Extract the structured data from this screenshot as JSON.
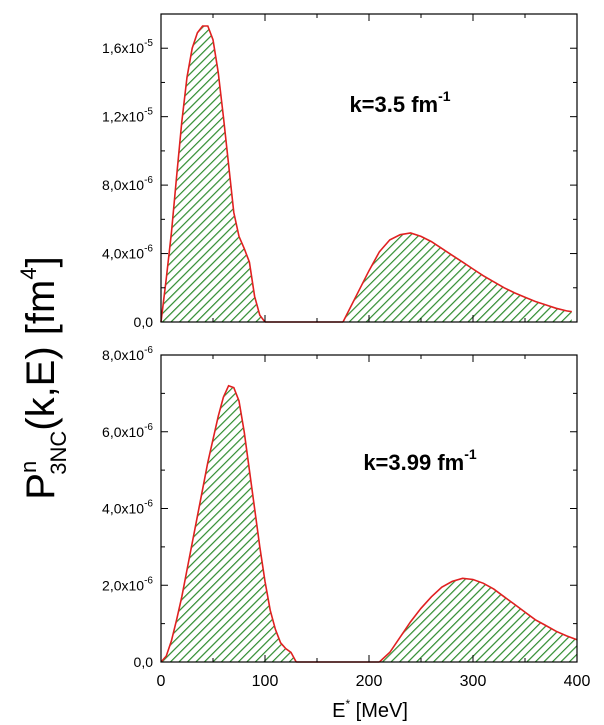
{
  "figure": {
    "ylabel": "P",
    "ylabel_sup": "n",
    "ylabel_sub": "3NC",
    "ylabel_rest": "(k,E) [fm",
    "ylabel_rest_sup": "4",
    "ylabel_end": "]",
    "xlabel": "E",
    "xlabel_sup": "*",
    "xlabel_rest": " [MeV]",
    "fill_color": "#2e8b2e",
    "curve_color": "#e02020"
  },
  "chart_data": [
    {
      "type": "area",
      "title": "",
      "annotation": {
        "text": "k=3.5 fm",
        "sup": "-1"
      },
      "xlim": [
        0,
        400
      ],
      "ylim": [
        0,
        1.8e-05
      ],
      "xticks": [
        0,
        100,
        200,
        300,
        400
      ],
      "yticks": [
        {
          "value": 0,
          "label": "0,0",
          "exp": ""
        },
        {
          "value": 4e-06,
          "label": "4,0x10",
          "exp": "-6"
        },
        {
          "value": 8e-06,
          "label": "8,0x10",
          "exp": "-6"
        },
        {
          "value": 1.2e-05,
          "label": "1,2x10",
          "exp": "-5"
        },
        {
          "value": 1.6e-05,
          "label": "1,6x10",
          "exp": "-5"
        }
      ],
      "series": [
        {
          "x": [
            0,
            5,
            10,
            15,
            20,
            25,
            30,
            35,
            40,
            45,
            50,
            55,
            60,
            65,
            70,
            75,
            80,
            85,
            90,
            95,
            100
          ],
          "y": [
            0,
            2.5e-06,
            5.2e-06,
            8.5e-06,
            1.17e-05,
            1.43e-05,
            1.6e-05,
            1.69e-05,
            1.73e-05,
            1.73e-05,
            1.65e-05,
            1.46e-05,
            1.2e-05,
            9.2e-06,
            6.4e-06,
            5e-06,
            4.3e-06,
            3.5e-06,
            1.5e-06,
            4e-07,
            0
          ]
        },
        {
          "x": [
            100,
            125,
            150,
            175
          ],
          "y": [
            0,
            0,
            0,
            0
          ]
        },
        {
          "x": [
            175,
            190,
            200,
            210,
            220,
            230,
            240,
            250,
            260,
            270,
            280,
            290,
            300,
            310,
            320,
            330,
            340,
            350,
            360,
            370,
            380,
            390,
            395
          ],
          "y": [
            0,
            1.8e-06,
            3e-06,
            4.1e-06,
            4.8e-06,
            5.1e-06,
            5.2e-06,
            5e-06,
            4.7e-06,
            4.3e-06,
            3.9e-06,
            3.5e-06,
            3.1e-06,
            2.7e-06,
            2.35e-06,
            2e-06,
            1.7e-06,
            1.45e-06,
            1.2e-06,
            1e-06,
            8e-07,
            6.5e-07,
            6e-07
          ]
        }
      ]
    },
    {
      "type": "area",
      "title": "",
      "annotation": {
        "text": "k=3.99 fm",
        "sup": "-1"
      },
      "xlim": [
        0,
        400
      ],
      "ylim": [
        0,
        8e-06
      ],
      "xticks": [
        0,
        100,
        200,
        300,
        400
      ],
      "yticks": [
        {
          "value": 0,
          "label": "0,0",
          "exp": ""
        },
        {
          "value": 2e-06,
          "label": "2,0x10",
          "exp": "-6"
        },
        {
          "value": 4e-06,
          "label": "4,0x10",
          "exp": "-6"
        },
        {
          "value": 6e-06,
          "label": "6,0x10",
          "exp": "-6"
        },
        {
          "value": 8e-06,
          "label": "8,0x10",
          "exp": "-6"
        }
      ],
      "series": [
        {
          "x": [
            0,
            5,
            10,
            15,
            20,
            25,
            30,
            35,
            40,
            45,
            50,
            55,
            60,
            65,
            70,
            75,
            80,
            85,
            90,
            95,
            100,
            105,
            110,
            115,
            120,
            125,
            130
          ],
          "y": [
            0,
            1.5e-07,
            5.5e-07,
            1.1e-06,
            1.7e-06,
            2.4e-06,
            3.1e-06,
            3.8e-06,
            4.5e-06,
            5.2e-06,
            5.8e-06,
            6.4e-06,
            6.9e-06,
            7.2e-06,
            7.15e-06,
            6.8e-06,
            6e-06,
            5e-06,
            4e-06,
            3e-06,
            2.1e-06,
            1.35e-06,
            8.5e-07,
            5e-07,
            3.5e-07,
            2.5e-07,
            0
          ]
        },
        {
          "x": [
            130,
            170,
            210
          ],
          "y": [
            0,
            0,
            0
          ]
        },
        {
          "x": [
            210,
            220,
            230,
            240,
            250,
            260,
            270,
            280,
            290,
            300,
            310,
            320,
            330,
            340,
            350,
            360,
            370,
            380,
            390,
            400
          ],
          "y": [
            0,
            2.5e-07,
            6.5e-07,
            1.05e-06,
            1.4e-06,
            1.7e-06,
            1.95e-06,
            2.1e-06,
            2.18e-06,
            2.15e-06,
            2.05e-06,
            1.9e-06,
            1.7e-06,
            1.5e-06,
            1.3e-06,
            1.1e-06,
            9.5e-07,
            8e-07,
            6.8e-07,
            5.8e-07
          ]
        }
      ]
    }
  ]
}
